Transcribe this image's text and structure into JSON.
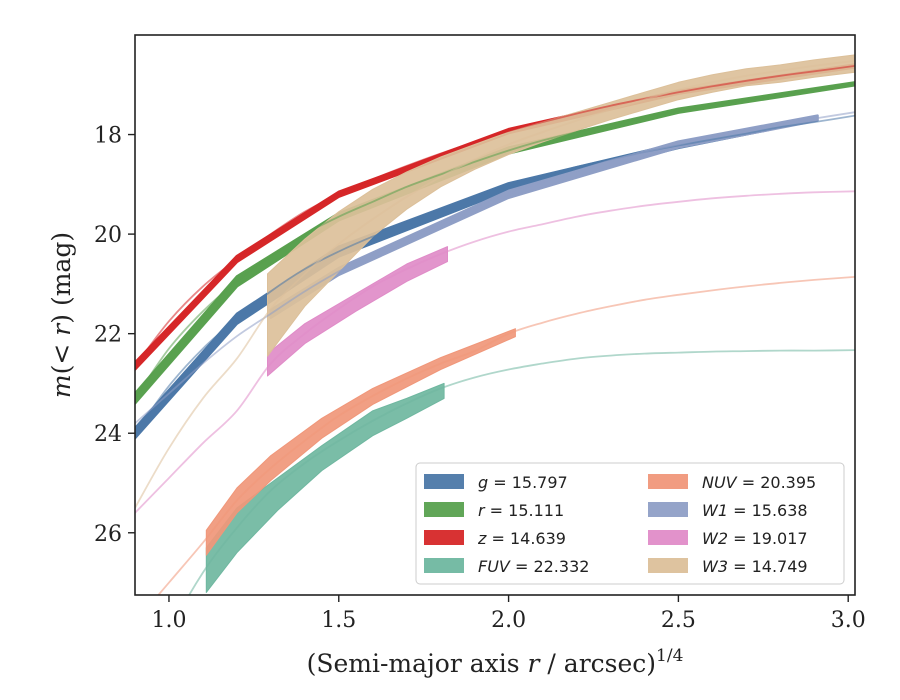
{
  "chart_data": {
    "type": "line",
    "xlabel": "(Semi-major axis r / arcsec)",
    "xlabel_parts": {
      "prefix": "(Semi-major axis ",
      "var": "r",
      "suffix": " / arcsec)",
      "power": "1/4"
    },
    "ylabel": "m(< r) (mag)",
    "ylabel_parts": {
      "m": "m",
      "open": "(",
      "lt": "<",
      "r": "r",
      "close": ")",
      "unit": " (mag)"
    },
    "xlim": [
      0.9,
      3.02
    ],
    "ylim": [
      27.25,
      16.0
    ],
    "y_inverted": true,
    "x_ticks": [
      {
        "value": 1.0,
        "label": "1.0"
      },
      {
        "value": 1.5,
        "label": "1.5"
      },
      {
        "value": 2.0,
        "label": "2.0"
      },
      {
        "value": 2.5,
        "label": "2.5"
      },
      {
        "value": 3.0,
        "label": "3.0"
      }
    ],
    "y_ticks": [
      {
        "value": 18,
        "label": "18"
      },
      {
        "value": 20,
        "label": "20"
      },
      {
        "value": 22,
        "label": "22"
      },
      {
        "value": 24,
        "label": "24"
      },
      {
        "value": 26,
        "label": "26"
      }
    ],
    "grid": false,
    "legend_position": "lower-right",
    "series": [
      {
        "name": "g",
        "value": "15.797",
        "color": "#4c78a8",
        "curve": [
          [
            0.9,
            24.0
          ],
          [
            1.0,
            23.05
          ],
          [
            1.1,
            22.3
          ],
          [
            1.2,
            21.7
          ],
          [
            1.3,
            21.15
          ],
          [
            1.4,
            20.7
          ],
          [
            1.5,
            20.35
          ],
          [
            1.6,
            20.05
          ],
          [
            1.7,
            19.8
          ],
          [
            1.8,
            19.55
          ],
          [
            1.9,
            19.3
          ],
          [
            2.0,
            19.05
          ],
          [
            2.1,
            18.85
          ],
          [
            2.2,
            18.65
          ],
          [
            2.3,
            18.5
          ],
          [
            2.4,
            18.35
          ],
          [
            2.5,
            18.22
          ],
          [
            2.6,
            18.1
          ],
          [
            2.7,
            17.98
          ],
          [
            2.8,
            17.85
          ],
          [
            2.9,
            17.75
          ],
          [
            3.02,
            17.62
          ]
        ],
        "band": [
          [
            0.9,
            24.1,
            23.9
          ],
          [
            1.2,
            21.8,
            21.6
          ],
          [
            1.5,
            20.45,
            20.25
          ],
          [
            2.0,
            19.12,
            18.98
          ],
          [
            2.5,
            18.27,
            18.17
          ],
          [
            2.77,
            17.9,
            17.82
          ]
        ],
        "band_width": 0.0
      },
      {
        "name": "r",
        "value": "15.111",
        "color": "#59a14f",
        "curve": [
          [
            0.9,
            23.3
          ],
          [
            1.0,
            22.3
          ],
          [
            1.1,
            21.55
          ],
          [
            1.2,
            20.95
          ],
          [
            1.3,
            20.45
          ],
          [
            1.4,
            20.0
          ],
          [
            1.5,
            19.65
          ],
          [
            1.6,
            19.35
          ],
          [
            1.7,
            19.05
          ],
          [
            1.8,
            18.8
          ],
          [
            1.9,
            18.55
          ],
          [
            2.0,
            18.32
          ],
          [
            2.1,
            18.12
          ],
          [
            2.2,
            17.95
          ],
          [
            2.3,
            17.8
          ],
          [
            2.4,
            17.65
          ],
          [
            2.5,
            17.52
          ],
          [
            2.6,
            17.4
          ],
          [
            2.7,
            17.3
          ],
          [
            2.8,
            17.2
          ],
          [
            2.9,
            17.1
          ],
          [
            3.02,
            16.98
          ]
        ],
        "band": [
          [
            0.9,
            23.4,
            23.2
          ],
          [
            1.2,
            21.05,
            20.85
          ],
          [
            1.5,
            19.72,
            19.58
          ],
          [
            2.0,
            18.38,
            18.26
          ],
          [
            2.5,
            17.56,
            17.48
          ],
          [
            3.02,
            17.01,
            16.95
          ]
        ],
        "band_width": 0.0
      },
      {
        "name": "z",
        "value": "14.639",
        "color": "#d62728",
        "curve": [
          [
            0.9,
            22.65
          ],
          [
            1.0,
            21.75
          ],
          [
            1.1,
            21.05
          ],
          [
            1.2,
            20.5
          ],
          [
            1.3,
            20.0
          ],
          [
            1.4,
            19.55
          ],
          [
            1.5,
            19.2
          ],
          [
            1.6,
            18.9
          ],
          [
            1.7,
            18.63
          ],
          [
            1.8,
            18.38
          ],
          [
            1.9,
            18.15
          ],
          [
            2.0,
            17.93
          ],
          [
            2.1,
            17.75
          ],
          [
            2.2,
            17.58
          ],
          [
            2.3,
            17.42
          ],
          [
            2.4,
            17.28
          ],
          [
            2.5,
            17.15
          ],
          [
            2.6,
            17.03
          ],
          [
            2.7,
            16.92
          ],
          [
            2.8,
            16.82
          ],
          [
            2.9,
            16.73
          ],
          [
            3.02,
            16.62
          ]
        ],
        "band": [
          [
            0.9,
            22.72,
            22.58
          ],
          [
            1.2,
            20.56,
            20.44
          ],
          [
            1.5,
            19.25,
            19.15
          ],
          [
            2.0,
            17.97,
            17.89
          ],
          [
            2.5,
            17.18,
            17.12
          ],
          [
            3.02,
            16.65,
            16.59
          ]
        ],
        "band_width": 0.0
      },
      {
        "name": "FUV",
        "value": "22.332",
        "color": "#6fb7a0",
        "curve": [
          [
            0.9,
            29.5
          ],
          [
            1.0,
            28.0
          ],
          [
            1.1,
            26.8
          ],
          [
            1.2,
            25.9
          ],
          [
            1.3,
            25.15
          ],
          [
            1.4,
            24.6
          ],
          [
            1.5,
            24.15
          ],
          [
            1.6,
            23.75
          ],
          [
            1.7,
            23.4
          ],
          [
            1.8,
            23.1
          ],
          [
            1.9,
            22.88
          ],
          [
            2.0,
            22.72
          ],
          [
            2.1,
            22.6
          ],
          [
            2.2,
            22.5
          ],
          [
            2.3,
            22.44
          ],
          [
            2.4,
            22.4
          ],
          [
            2.5,
            22.38
          ],
          [
            2.6,
            22.36
          ],
          [
            2.7,
            22.35
          ],
          [
            2.8,
            22.34
          ],
          [
            2.9,
            22.34
          ],
          [
            3.02,
            22.33
          ]
        ],
        "band": [
          [
            1.11,
            27.2,
            26.3
          ],
          [
            1.2,
            26.4,
            25.5
          ],
          [
            1.32,
            25.55,
            24.9
          ],
          [
            1.45,
            24.75,
            24.25
          ],
          [
            1.6,
            24.05,
            23.55
          ],
          [
            1.7,
            23.7,
            23.3
          ],
          [
            1.81,
            23.3,
            23.0
          ]
        ],
        "band_width": 0.0
      },
      {
        "name": "NUV",
        "value": "20.395",
        "color": "#f0977a",
        "curve": [
          [
            0.9,
            27.8
          ],
          [
            1.0,
            27.0
          ],
          [
            1.1,
            26.2
          ],
          [
            1.2,
            25.35
          ],
          [
            1.3,
            24.7
          ],
          [
            1.4,
            24.15
          ],
          [
            1.5,
            23.65
          ],
          [
            1.6,
            23.25
          ],
          [
            1.7,
            22.9
          ],
          [
            1.8,
            22.6
          ],
          [
            1.9,
            22.35
          ],
          [
            2.0,
            22.0
          ],
          [
            2.1,
            21.78
          ],
          [
            2.2,
            21.6
          ],
          [
            2.3,
            21.45
          ],
          [
            2.4,
            21.32
          ],
          [
            2.5,
            21.22
          ],
          [
            2.6,
            21.13
          ],
          [
            2.7,
            21.05
          ],
          [
            2.8,
            20.98
          ],
          [
            2.9,
            20.92
          ],
          [
            3.02,
            20.86
          ]
        ],
        "band": [
          [
            1.11,
            26.45,
            25.95
          ],
          [
            1.2,
            25.6,
            25.1
          ],
          [
            1.3,
            24.95,
            24.45
          ],
          [
            1.45,
            24.1,
            23.7
          ],
          [
            1.6,
            23.42,
            23.1
          ],
          [
            1.8,
            22.72,
            22.48
          ],
          [
            2.02,
            22.06,
            21.9
          ]
        ],
        "band_width": 0.0
      },
      {
        "name": "W1",
        "value": "15.638",
        "color": "#8f9fc6",
        "curve": [
          [
            0.9,
            23.8
          ],
          [
            1.0,
            23.2
          ],
          [
            1.1,
            22.6
          ],
          [
            1.2,
            22.05
          ],
          [
            1.3,
            21.6
          ],
          [
            1.4,
            21.15
          ],
          [
            1.5,
            20.75
          ],
          [
            1.6,
            20.4
          ],
          [
            1.7,
            20.1
          ],
          [
            1.8,
            19.8
          ],
          [
            1.9,
            19.5
          ],
          [
            2.0,
            19.2
          ],
          [
            2.1,
            18.95
          ],
          [
            2.2,
            18.73
          ],
          [
            2.3,
            18.52
          ],
          [
            2.4,
            18.35
          ],
          [
            2.5,
            18.2
          ],
          [
            2.6,
            18.05
          ],
          [
            2.7,
            17.92
          ],
          [
            2.8,
            17.8
          ],
          [
            2.9,
            17.68
          ],
          [
            3.02,
            17.55
          ]
        ],
        "band": [
          [
            1.3,
            21.68,
            21.52
          ],
          [
            1.5,
            20.82,
            20.68
          ],
          [
            2.0,
            19.27,
            19.13
          ],
          [
            2.5,
            18.26,
            18.14
          ],
          [
            2.91,
            17.72,
            17.62
          ]
        ],
        "band_width": 0.0
      },
      {
        "name": "W2",
        "value": "19.017",
        "color": "#e08cc8",
        "curve": [
          [
            0.9,
            25.6
          ],
          [
            1.0,
            24.9
          ],
          [
            1.1,
            24.2
          ],
          [
            1.2,
            23.55
          ],
          [
            1.3,
            22.6
          ],
          [
            1.4,
            22.0
          ],
          [
            1.5,
            21.5
          ],
          [
            1.6,
            21.05
          ],
          [
            1.7,
            20.7
          ],
          [
            1.8,
            20.4
          ],
          [
            1.9,
            20.15
          ],
          [
            2.0,
            19.95
          ],
          [
            2.1,
            19.8
          ],
          [
            2.2,
            19.65
          ],
          [
            2.3,
            19.53
          ],
          [
            2.4,
            19.43
          ],
          [
            2.5,
            19.35
          ],
          [
            2.6,
            19.28
          ],
          [
            2.7,
            19.23
          ],
          [
            2.8,
            19.19
          ],
          [
            2.9,
            19.16
          ],
          [
            3.02,
            19.14
          ]
        ],
        "band": [
          [
            1.29,
            22.85,
            22.4
          ],
          [
            1.4,
            22.2,
            21.8
          ],
          [
            1.55,
            21.55,
            21.2
          ],
          [
            1.7,
            20.95,
            20.6
          ],
          [
            1.82,
            20.55,
            20.25
          ]
        ],
        "band_width": 0.0
      },
      {
        "name": "W3",
        "value": "14.749",
        "color": "#dcc09a",
        "curve": [
          [
            0.9,
            25.5
          ],
          [
            1.0,
            24.3
          ],
          [
            1.1,
            23.3
          ],
          [
            1.2,
            22.5
          ],
          [
            1.3,
            21.5
          ],
          [
            1.4,
            20.8
          ],
          [
            1.5,
            20.2
          ],
          [
            1.6,
            19.7
          ],
          [
            1.7,
            19.25
          ],
          [
            1.8,
            18.85
          ],
          [
            1.9,
            18.5
          ],
          [
            2.0,
            18.2
          ],
          [
            2.1,
            17.95
          ],
          [
            2.2,
            17.72
          ],
          [
            2.3,
            17.5
          ],
          [
            2.4,
            17.3
          ],
          [
            2.5,
            17.1
          ],
          [
            2.6,
            16.95
          ],
          [
            2.7,
            16.82
          ],
          [
            2.8,
            16.72
          ],
          [
            2.9,
            16.62
          ],
          [
            3.02,
            16.52
          ]
        ],
        "band": [
          [
            1.29,
            22.45,
            20.8
          ],
          [
            1.4,
            21.45,
            20.1
          ],
          [
            1.5,
            20.75,
            19.55
          ],
          [
            1.6,
            20.05,
            19.1
          ],
          [
            1.7,
            19.5,
            18.75
          ],
          [
            1.8,
            19.05,
            18.45
          ],
          [
            1.9,
            18.7,
            18.2
          ],
          [
            2.0,
            18.4,
            17.95
          ],
          [
            2.1,
            18.15,
            17.75
          ],
          [
            2.2,
            17.92,
            17.55
          ],
          [
            2.3,
            17.7,
            17.35
          ],
          [
            2.4,
            17.5,
            17.15
          ],
          [
            2.5,
            17.3,
            16.95
          ],
          [
            2.6,
            17.15,
            16.8
          ],
          [
            2.7,
            17.02,
            16.68
          ],
          [
            2.8,
            16.95,
            16.6
          ],
          [
            2.9,
            16.85,
            16.5
          ],
          [
            3.02,
            16.75,
            16.4
          ]
        ],
        "band_width": 0.0
      }
    ]
  }
}
